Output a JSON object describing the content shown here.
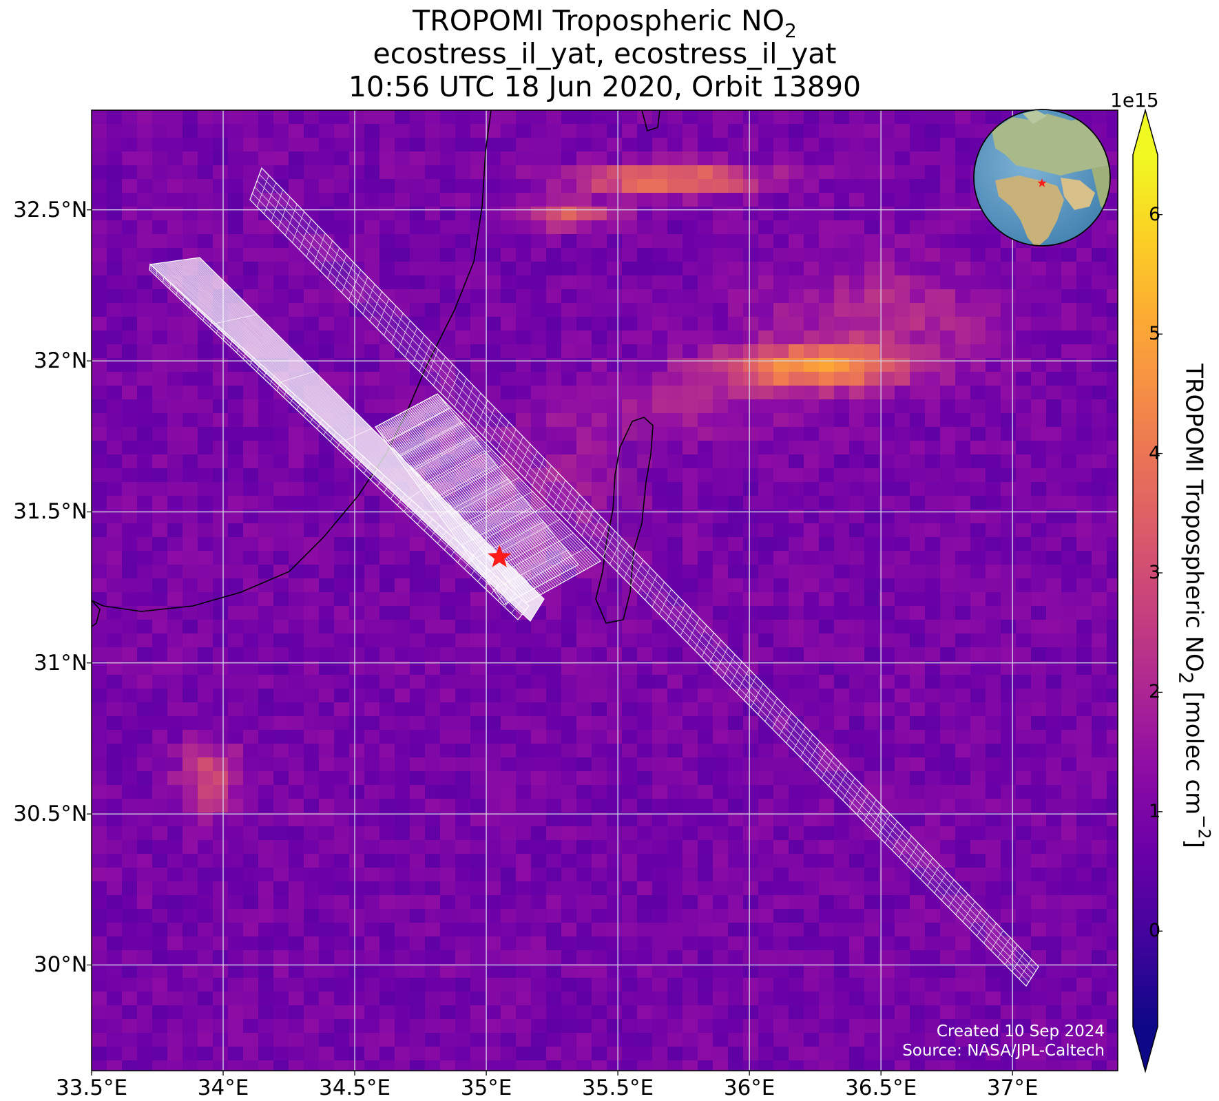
{
  "title": {
    "line1_prefix": "TROPOMI Tropospheric NO",
    "line1_sub": "2",
    "line2": "ecostress_il_yat, ecostress_il_yat",
    "line3": "10:56 UTC 18 Jun 2020, Orbit 13890"
  },
  "map": {
    "lon_range": [
      33.5,
      37.4
    ],
    "lat_range": [
      29.65,
      32.83
    ],
    "x_ticks": [
      33.5,
      34.0,
      34.5,
      35.0,
      35.5,
      36.0,
      36.5,
      37.0
    ],
    "x_tick_labels": [
      "33.5°E",
      "34°E",
      "34.5°E",
      "35°E",
      "35.5°E",
      "36°E",
      "36.5°E",
      "37°E"
    ],
    "y_ticks": [
      30.0,
      30.5,
      31.0,
      31.5,
      32.0,
      32.5
    ],
    "y_tick_labels": [
      "30°N",
      "30.5°N",
      "31°N",
      "31.5°N",
      "32°N",
      "32.5°N"
    ],
    "grid": true,
    "target_marker": {
      "lon": 35.05,
      "lat": 31.35,
      "color": "#ff1a1a"
    },
    "swath_color": "#ffffff"
  },
  "colorbar": {
    "colormap": "plasma",
    "multiplier_label": "1e15",
    "range": [
      -0.8,
      6.5
    ],
    "ticks": [
      0,
      1,
      2,
      3,
      4,
      5,
      6
    ],
    "tick_labels": [
      "0",
      "1",
      "2",
      "3",
      "4",
      "5",
      "6"
    ],
    "label_prefix": "TROPOMI Tropospheric NO",
    "label_sub": "2",
    "label_mid": " [molec cm",
    "label_sup": "−2",
    "label_end": "]",
    "extend": "both"
  },
  "inset_globe": {
    "marker_color": "#ff1a1a"
  },
  "credit": {
    "line1": "Created 10 Sep 2024",
    "line2": "Source: NASA/JPL-Caltech"
  }
}
